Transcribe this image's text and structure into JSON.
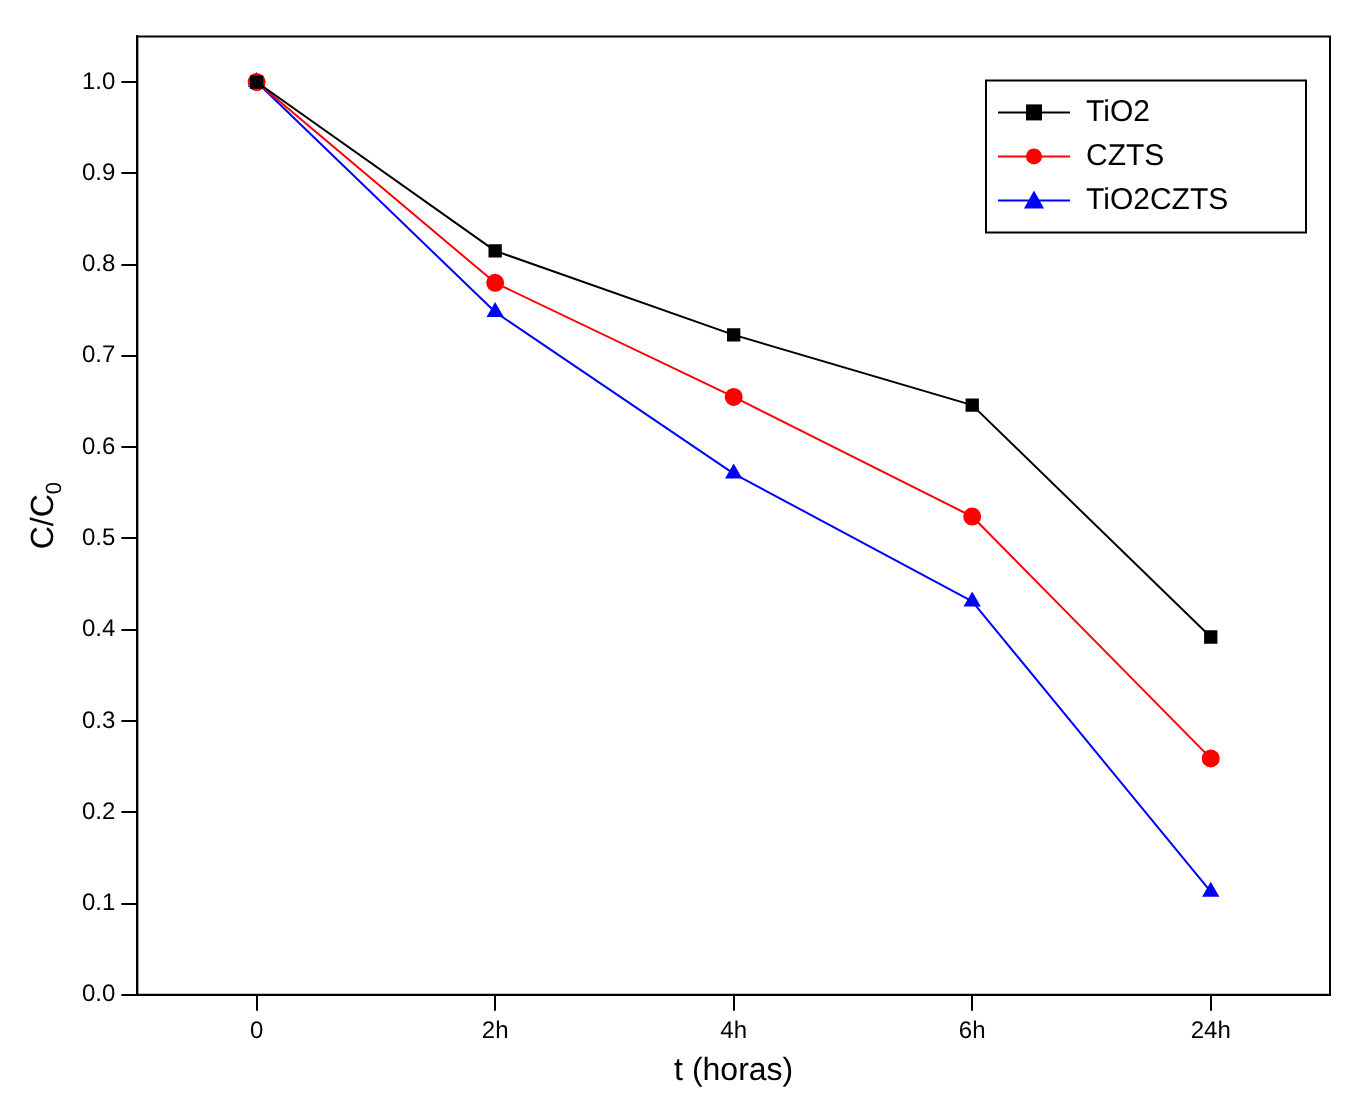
{
  "chart_data": {
    "type": "line",
    "xlabel": "t (horas)",
    "ylabel": "C/C$_{0}$",
    "categories": [
      "0",
      "2h",
      "4h",
      "6h",
      "24h"
    ],
    "series": [
      {
        "name": "TiO2",
        "color": "#000000",
        "marker": "square",
        "values": [
          1.0,
          0.815,
          0.723,
          0.646,
          0.392
        ]
      },
      {
        "name": "CZTS",
        "color": "#ff0000",
        "marker": "circle",
        "values": [
          1.0,
          0.78,
          0.655,
          0.524,
          0.259
        ]
      },
      {
        "name": "TiO2CZTS",
        "color": "#0000ff",
        "marker": "triangle",
        "values": [
          1.0,
          0.748,
          0.571,
          0.431,
          0.113
        ]
      }
    ],
    "ylim": [
      0,
      1.05
    ],
    "yticks": [
      {
        "value": 0,
        "label": "0.0"
      },
      {
        "value": 0.1,
        "label": "0.1"
      },
      {
        "value": 0.2,
        "label": "0.2"
      },
      {
        "value": 0.3,
        "label": "0.3"
      },
      {
        "value": 0.4,
        "label": "0.4"
      },
      {
        "value": 0.5,
        "label": "0.5"
      },
      {
        "value": 0.6,
        "label": "0.6"
      },
      {
        "value": 0.7,
        "label": "0.7"
      },
      {
        "value": 0.8,
        "label": "0.8"
      },
      {
        "value": 0.9,
        "label": "0.9"
      },
      {
        "value": 1,
        "label": "1.0"
      }
    ],
    "grid": false,
    "legend": "top right",
    "line_style": "solid"
  }
}
